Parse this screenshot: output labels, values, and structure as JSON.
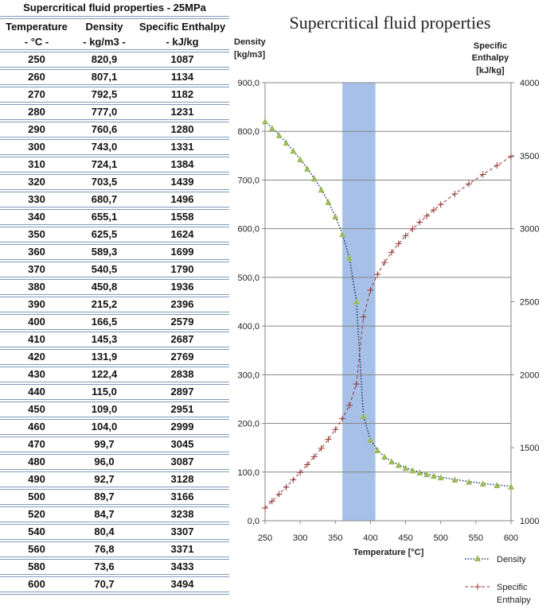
{
  "table": {
    "title": "Supercritical fluid properties - 25MPa",
    "headers": [
      {
        "line1": "Temperature",
        "line2": "- °C -"
      },
      {
        "line1": "Density",
        "line2": "- kg/m3 -"
      },
      {
        "line1": "Specific Enthalpy",
        "line2": "- kJ/kg"
      }
    ],
    "rows": [
      [
        "250",
        "820,9",
        "1087"
      ],
      [
        "260",
        "807,1",
        "1134"
      ],
      [
        "270",
        "792,5",
        "1182"
      ],
      [
        "280",
        "777,0",
        "1231"
      ],
      [
        "290",
        "760,6",
        "1280"
      ],
      [
        "300",
        "743,0",
        "1331"
      ],
      [
        "310",
        "724,1",
        "1384"
      ],
      [
        "320",
        "703,5",
        "1439"
      ],
      [
        "330",
        "680,7",
        "1496"
      ],
      [
        "340",
        "655,1",
        "1558"
      ],
      [
        "350",
        "625,5",
        "1624"
      ],
      [
        "360",
        "589,3",
        "1699"
      ],
      [
        "370",
        "540,5",
        "1790"
      ],
      [
        "380",
        "450,8",
        "1936"
      ],
      [
        "390",
        "215,2",
        "2396"
      ],
      [
        "400",
        "166,5",
        "2579"
      ],
      [
        "410",
        "145,3",
        "2687"
      ],
      [
        "420",
        "131,9",
        "2769"
      ],
      [
        "430",
        "122,4",
        "2838"
      ],
      [
        "440",
        "115,0",
        "2897"
      ],
      [
        "450",
        "109,0",
        "2951"
      ],
      [
        "460",
        "104,0",
        "2999"
      ],
      [
        "470",
        "99,7",
        "3045"
      ],
      [
        "480",
        "96,0",
        "3087"
      ],
      [
        "490",
        "92,7",
        "3128"
      ],
      [
        "500",
        "89,7",
        "3166"
      ],
      [
        "520",
        "84,7",
        "3238"
      ],
      [
        "540",
        "80,4",
        "3307"
      ],
      [
        "560",
        "76,8",
        "3371"
      ],
      [
        "580",
        "73,6",
        "3433"
      ],
      [
        "600",
        "70,7",
        "3494"
      ]
    ]
  },
  "chart_data": {
    "type": "line",
    "title": "Supercritical fluid properties",
    "xlabel": "Temperature [°C]",
    "ylabel_left": [
      "Density",
      "[kg/m3]"
    ],
    "ylabel_right": [
      "Specific",
      "Enthalpy",
      "[kJ/kg]"
    ],
    "xlim": [
      250,
      600
    ],
    "ylim_left": [
      0,
      900
    ],
    "ylim_right": [
      1000,
      4000
    ],
    "x_ticks": [
      "250",
      "300",
      "350",
      "400",
      "450",
      "500",
      "550",
      "600"
    ],
    "y_ticks_left": [
      "0,0",
      "100,0",
      "200,0",
      "300,0",
      "400,0",
      "500,0",
      "600,0",
      "700,0",
      "800,0",
      "900,0"
    ],
    "y_ticks_right": [
      "1000",
      "1500",
      "2000",
      "2500",
      "3000",
      "3500",
      "4000"
    ],
    "grid": "horizontal",
    "highlight_band_x": [
      360,
      407
    ],
    "x": [
      250,
      260,
      270,
      280,
      290,
      300,
      310,
      320,
      330,
      340,
      350,
      360,
      370,
      380,
      390,
      400,
      410,
      420,
      430,
      440,
      450,
      460,
      470,
      480,
      490,
      500,
      520,
      540,
      560,
      580,
      600
    ],
    "series": [
      {
        "name": "Density",
        "axis": "left",
        "color": "#1f3864",
        "marker_color": "#9bbb59",
        "values": [
          820.9,
          807.1,
          792.5,
          777.0,
          760.6,
          743.0,
          724.1,
          703.5,
          680.7,
          655.1,
          625.5,
          589.3,
          540.5,
          450.8,
          215.2,
          166.5,
          145.3,
          131.9,
          122.4,
          115.0,
          109.0,
          104.0,
          99.7,
          96.0,
          92.7,
          89.7,
          84.7,
          80.4,
          76.8,
          73.6,
          70.7
        ]
      },
      {
        "name": "Specific Enthalpy",
        "axis": "right",
        "color": "#953735",
        "values": [
          1087,
          1134,
          1182,
          1231,
          1280,
          1331,
          1384,
          1439,
          1496,
          1558,
          1624,
          1699,
          1790,
          1936,
          2396,
          2579,
          2687,
          2769,
          2838,
          2897,
          2951,
          2999,
          3045,
          3087,
          3128,
          3166,
          3238,
          3307,
          3371,
          3433,
          3494
        ]
      }
    ],
    "legend": {
      "placement": "bottom-right",
      "entries": [
        "Density",
        "Specific",
        "Enthalpy"
      ]
    },
    "band_color": "#a7c0e8"
  }
}
